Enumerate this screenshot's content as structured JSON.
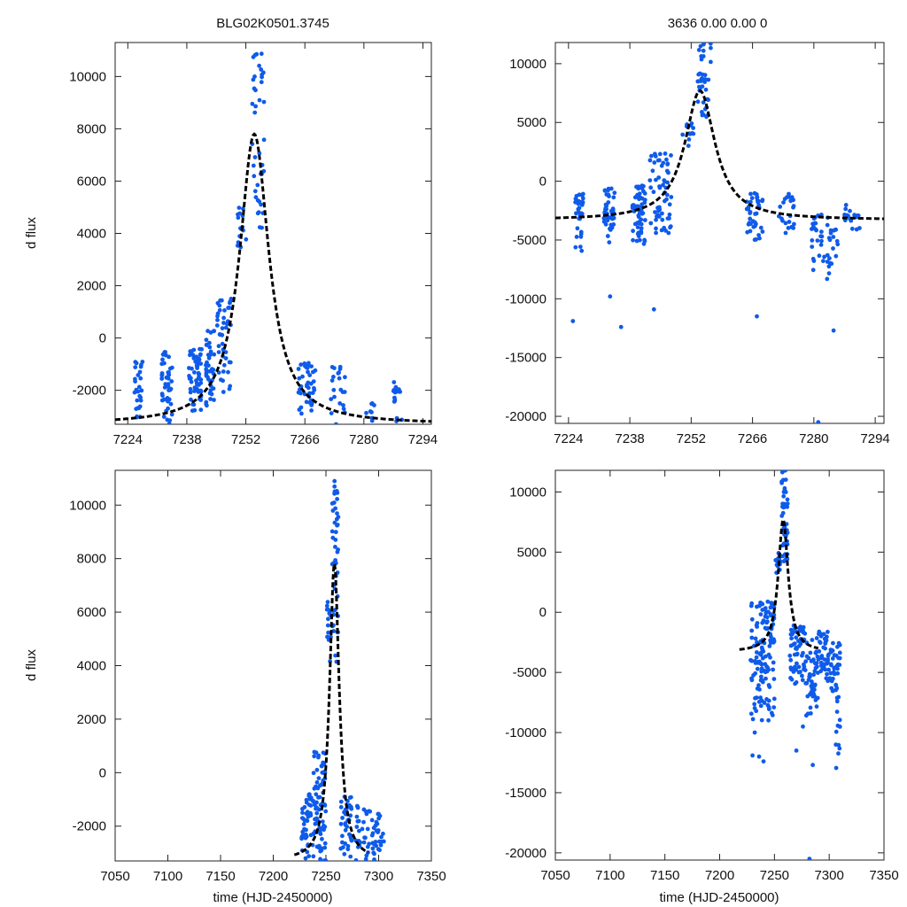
{
  "figure": {
    "title_left": "BLG02K0501.3745",
    "title_right": "3636  0.00  0.00  0",
    "ylabel_top": "d flux",
    "ylabel_bottom": "d flux",
    "xlabel_bottom_left": "time (HJD-2450000)",
    "xlabel_bottom_right": "time (HJD-2450000)"
  },
  "colors": {
    "points": "#0f5bea",
    "model": "#000000",
    "frame": "#222222"
  },
  "chart_data": [
    {
      "type": "scatter",
      "panel": "top-left",
      "title": "BLG02K0501.3745",
      "ylabel": "d flux",
      "xlabel": "",
      "xlim": [
        7221,
        7296
      ],
      "ylim": [
        -3300,
        11300
      ],
      "xticks": [
        7224,
        7238,
        7252,
        7266,
        7280,
        7294
      ],
      "yticks": [
        -2000,
        0,
        2000,
        4000,
        6000,
        8000,
        10000
      ],
      "model": {
        "t0": 7254.0,
        "peak": 7800,
        "baseline": -3300,
        "width": 4.2,
        "x_range": [
          7221,
          7296
        ]
      },
      "clusters": [
        {
          "x": [
            7225.5,
            7227.5
          ],
          "y": [
            -3300,
            -900
          ],
          "n": 28
        },
        {
          "x": [
            7232.0,
            7234.5
          ],
          "y": [
            -3300,
            -500
          ],
          "n": 45
        },
        {
          "x": [
            7238.5,
            7241.5
          ],
          "y": [
            -2800,
            -300
          ],
          "n": 60
        },
        {
          "x": [
            7242.5,
            7244.5
          ],
          "y": [
            -2600,
            300
          ],
          "n": 40
        },
        {
          "x": [
            7245.0,
            7248.5
          ],
          "y": [
            -2500,
            1500
          ],
          "n": 45
        },
        {
          "x": [
            7250.0,
            7252.5
          ],
          "y": [
            3000,
            5100
          ],
          "n": 14
        },
        {
          "x": [
            7253.5,
            7256.5
          ],
          "y": [
            3600,
            10900
          ],
          "n": 40
        },
        {
          "x": [
            7264.5,
            7268.5
          ],
          "y": [
            -3000,
            -900
          ],
          "n": 40
        },
        {
          "x": [
            7272.0,
            7275.5
          ],
          "y": [
            -3300,
            -1000
          ],
          "n": 22
        },
        {
          "x": [
            7280.5,
            7282.5
          ],
          "y": [
            -3300,
            -2500
          ],
          "n": 8
        },
        {
          "x": [
            7287.0,
            7289.0
          ],
          "y": [
            -3200,
            -1600
          ],
          "n": 18
        }
      ]
    },
    {
      "type": "scatter",
      "panel": "top-right",
      "title": "3636  0.00  0.00  0",
      "ylabel": "",
      "xlabel": "",
      "xlim": [
        7221,
        7296
      ],
      "ylim": [
        -20600,
        11800
      ],
      "xticks": [
        7224,
        7238,
        7252,
        7266,
        7280,
        7294
      ],
      "yticks": [
        -20000,
        -15000,
        -10000,
        -5000,
        0,
        5000,
        10000
      ],
      "model": {
        "t0": 7254.0,
        "peak": 7700,
        "baseline": -3300,
        "width": 4.2,
        "x_range": [
          7221,
          7296
        ]
      },
      "clusters": [
        {
          "x": [
            7225.5,
            7227.5
          ],
          "y": [
            -6000,
            -1000
          ],
          "n": 30
        },
        {
          "x": [
            7232.0,
            7234.5
          ],
          "y": [
            -5500,
            -500
          ],
          "n": 45
        },
        {
          "x": [
            7238.5,
            7241.5
          ],
          "y": [
            -5500,
            -300
          ],
          "n": 60
        },
        {
          "x": [
            7242.5,
            7247.5
          ],
          "y": [
            -4500,
            2500
          ],
          "n": 60
        },
        {
          "x": [
            7250.0,
            7252.5
          ],
          "y": [
            3000,
            5000
          ],
          "n": 14
        },
        {
          "x": [
            7253.5,
            7256.5
          ],
          "y": [
            4000,
            11800
          ],
          "n": 40
        },
        {
          "x": [
            7264.5,
            7268.5
          ],
          "y": [
            -5000,
            -1000
          ],
          "n": 40
        },
        {
          "x": [
            7272.0,
            7275.5
          ],
          "y": [
            -4500,
            -1000
          ],
          "n": 22
        },
        {
          "x": [
            7279.5,
            7282.5
          ],
          "y": [
            -8000,
            -2500
          ],
          "n": 25
        },
        {
          "x": [
            7283.0,
            7285.5
          ],
          "y": [
            -8500,
            -2500
          ],
          "n": 22
        },
        {
          "x": [
            7287.0,
            7290.5
          ],
          "y": [
            -4500,
            -2000
          ],
          "n": 18
        }
      ],
      "outliers": [
        [
          7225.0,
          -11900
        ],
        [
          7233.5,
          -9800
        ],
        [
          7236.0,
          -12400
        ],
        [
          7243.5,
          -10900
        ],
        [
          7267.0,
          -11500
        ],
        [
          7284.5,
          -12700
        ],
        [
          7281.0,
          -20500
        ]
      ]
    },
    {
      "type": "scatter",
      "panel": "bottom-left",
      "title": "",
      "ylabel": "d flux",
      "xlabel": "time (HJD-2450000)",
      "xlim": [
        7050,
        7350
      ],
      "ylim": [
        -3300,
        11300
      ],
      "xticks": [
        7050,
        7100,
        7150,
        7200,
        7250,
        7300,
        7350
      ],
      "yticks": [
        -2000,
        0,
        2000,
        4000,
        6000,
        8000,
        10000
      ],
      "model": {
        "t0": 7258.0,
        "peak": 7800,
        "baseline": -3300,
        "width": 5.5,
        "x_range": [
          7220,
          7290
        ]
      },
      "clusters": [
        {
          "x": [
            7227,
            7236
          ],
          "y": [
            -3300,
            -800
          ],
          "n": 45
        },
        {
          "x": [
            7237,
            7250
          ],
          "y": [
            -3300,
            800
          ],
          "n": 80
        },
        {
          "x": [
            7251,
            7256
          ],
          "y": [
            4000,
            6500
          ],
          "n": 14
        },
        {
          "x": [
            7256,
            7262
          ],
          "y": [
            3700,
            10900
          ],
          "n": 45
        },
        {
          "x": [
            7264,
            7275
          ],
          "y": [
            -3300,
            -900
          ],
          "n": 40
        },
        {
          "x": [
            7278,
            7292
          ],
          "y": [
            -3300,
            -1200
          ],
          "n": 30
        },
        {
          "x": [
            7293,
            7305
          ],
          "y": [
            -3300,
            -1500
          ],
          "n": 30
        }
      ]
    },
    {
      "type": "scatter",
      "panel": "bottom-right",
      "title": "",
      "ylabel": "",
      "xlabel": "time (HJD-2450000)",
      "xlim": [
        7050,
        7350
      ],
      "ylim": [
        -20600,
        11800
      ],
      "xticks": [
        7050,
        7100,
        7150,
        7200,
        7250,
        7300,
        7350
      ],
      "yticks": [
        -20000,
        -15000,
        -10000,
        -5000,
        0,
        5000,
        10000
      ],
      "model": {
        "t0": 7258.0,
        "peak": 7700,
        "baseline": -3300,
        "width": 5.5,
        "x_range": [
          7218,
          7290
        ]
      },
      "clusters": [
        {
          "x": [
            7228,
            7250
          ],
          "y": [
            -9000,
            1000
          ],
          "n": 130
        },
        {
          "x": [
            7251,
            7256
          ],
          "y": [
            3000,
            5000
          ],
          "n": 14
        },
        {
          "x": [
            7256,
            7262
          ],
          "y": [
            4000,
            11800
          ],
          "n": 45
        },
        {
          "x": [
            7264,
            7278
          ],
          "y": [
            -6000,
            -1000
          ],
          "n": 60
        },
        {
          "x": [
            7278,
            7290
          ],
          "y": [
            -9000,
            -2000
          ],
          "n": 50
        },
        {
          "x": [
            7290,
            7300
          ],
          "y": [
            -6000,
            -1500
          ],
          "n": 40
        },
        {
          "x": [
            7300,
            7310
          ],
          "y": [
            -8000,
            -2500
          ],
          "n": 40
        },
        {
          "x": [
            7306,
            7310
          ],
          "y": [
            -13700,
            -8000
          ],
          "n": 10
        }
      ],
      "outliers": [
        [
          7230,
          -11900
        ],
        [
          7240,
          -12400
        ],
        [
          7232,
          -10000
        ],
        [
          7236,
          -12000
        ],
        [
          7270,
          -11500
        ],
        [
          7285,
          -12700
        ],
        [
          7282,
          -20500
        ],
        [
          7276,
          -9500
        ]
      ]
    }
  ]
}
